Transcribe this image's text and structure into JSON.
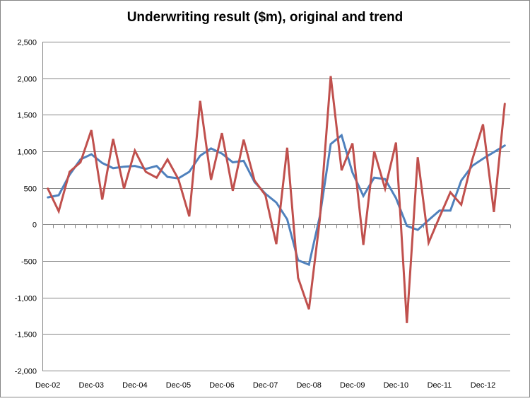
{
  "chart_data": {
    "type": "line",
    "title": "Underwriting result ($m), original and trend",
    "xlabel": "",
    "ylabel": "",
    "ylim": [
      -2000,
      2500
    ],
    "y_ticks": [
      2500,
      2000,
      1500,
      1000,
      500,
      0,
      -500,
      -1000,
      -1500,
      -2000
    ],
    "y_tick_labels": [
      "2,500",
      "2,000",
      "1,500",
      "1,000",
      "500",
      "0",
      "-500",
      "-1,000",
      "-1,500",
      "-2,000"
    ],
    "x_tick_labels": [
      "Dec-02",
      "Dec-03",
      "Dec-04",
      "Dec-05",
      "Dec-06",
      "Dec-07",
      "Dec-08",
      "Dec-09",
      "Dec-10",
      "Dec-11",
      "Dec-12"
    ],
    "x_tick_label_every": 4,
    "n_points": 43,
    "gridlines": "horizontal",
    "legend": "none",
    "series": [
      {
        "color": "#4F81BD",
        "values": [
          370,
          400,
          680,
          890,
          960,
          840,
          770,
          790,
          800,
          760,
          800,
          650,
          630,
          720,
          940,
          1040,
          970,
          850,
          870,
          580,
          420,
          300,
          70,
          -490,
          -550,
          110,
          1100,
          1220,
          710,
          390,
          640,
          620,
          360,
          -20,
          -75,
          60,
          190,
          190,
          600,
          800,
          900,
          990,
          1080
        ]
      },
      {
        "color": "#C0504D",
        "values": [
          490,
          180,
          720,
          850,
          1290,
          340,
          1170,
          490,
          1010,
          720,
          640,
          890,
          620,
          110,
          1690,
          610,
          1250,
          460,
          1160,
          600,
          400,
          -270,
          1050,
          -730,
          -1160,
          70,
          2030,
          740,
          1110,
          -280,
          1000,
          490,
          1120,
          -1350,
          920,
          -250,
          100,
          440,
          270,
          880,
          1370,
          170,
          1650
        ]
      }
    ]
  }
}
